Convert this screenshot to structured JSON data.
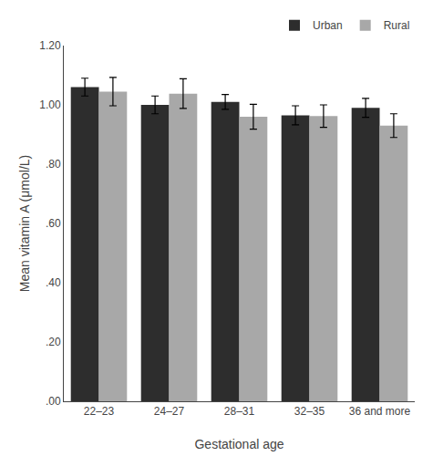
{
  "chart_data": {
    "type": "bar",
    "xlabel": "Gestational age",
    "ylabel": "Mean vitamin A (μmol/L)",
    "categories": [
      "22–23",
      "24–27",
      "28–31",
      "32–35",
      "36 and more"
    ],
    "series": [
      {
        "name": "Urban",
        "color": "#2d2d2d",
        "values": [
          1.06,
          1.0,
          1.01,
          0.965,
          0.99
        ],
        "errors": [
          0.03,
          0.03,
          0.025,
          0.032,
          0.032
        ]
      },
      {
        "name": "Rural",
        "color": "#a8a8a8",
        "values": [
          1.045,
          1.038,
          0.96,
          0.962,
          0.93
        ],
        "errors": [
          0.048,
          0.05,
          0.042,
          0.038,
          0.04
        ]
      }
    ],
    "ylim": [
      0,
      1.2
    ],
    "yticks": [
      {
        "value": 0.0,
        "label": ".00"
      },
      {
        "value": 0.2,
        "label": ".20"
      },
      {
        "value": 0.4,
        "label": ".40"
      },
      {
        "value": 0.6,
        "label": ".60"
      },
      {
        "value": 0.8,
        "label": ".80"
      },
      {
        "value": 1.0,
        "label": "1.00"
      },
      {
        "value": 1.2,
        "label": "1.20"
      }
    ],
    "legend": "upper right",
    "grid": false
  }
}
